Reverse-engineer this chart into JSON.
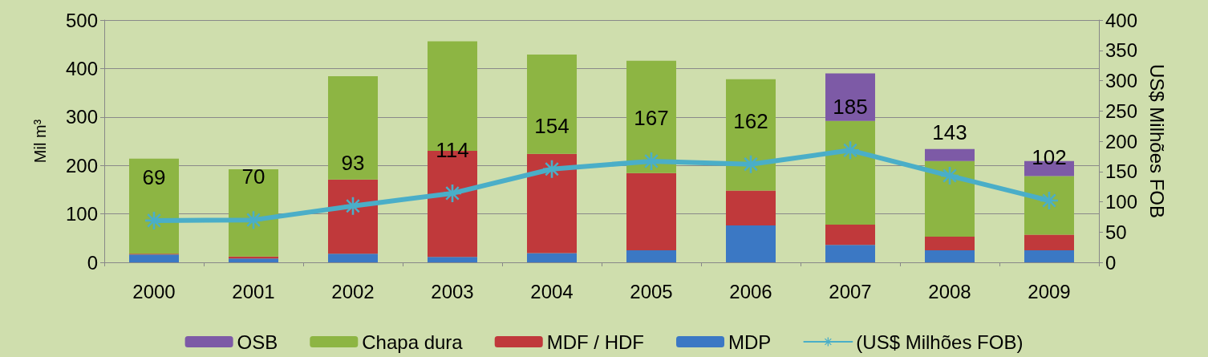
{
  "chart_data": {
    "type": "bar",
    "stacked": true,
    "ylabel": "Mil m³",
    "y2label": "US$ Milhões FOB",
    "categories": [
      "2000",
      "2001",
      "2002",
      "2003",
      "2004",
      "2005",
      "2006",
      "2007",
      "2008",
      "2009"
    ],
    "series": [
      {
        "name": "MDP",
        "color": "#3b78c4",
        "values": [
          16,
          8,
          18,
          11,
          19,
          25,
          76,
          36,
          25,
          25
        ]
      },
      {
        "name": "MDF / HDF",
        "color": "#c0393b",
        "values": [
          2,
          4,
          153,
          219,
          205,
          159,
          72,
          42,
          28,
          32
        ]
      },
      {
        "name": "Chapa dura",
        "color": "#8db543",
        "values": [
          196,
          180,
          213,
          226,
          205,
          232,
          230,
          214,
          156,
          121
        ]
      },
      {
        "name": "OSB",
        "color": "#7d5aa6",
        "values": [
          null,
          null,
          null,
          null,
          null,
          null,
          null,
          98,
          25,
          31
        ]
      },
      {
        "name": "(US$ Milhões FOB)",
        "type": "line",
        "axis": "y2",
        "color": "#4aaec8",
        "marker": "cross",
        "data_labels": true,
        "values": [
          69,
          70,
          93,
          114,
          154,
          167,
          162,
          185,
          143,
          102
        ]
      }
    ],
    "ylim": [
      0,
      500
    ],
    "yticks": [
      0,
      100,
      200,
      300,
      400,
      500
    ],
    "y2lim": [
      0,
      400
    ],
    "y2ticks": [
      0,
      50,
      100,
      150,
      200,
      250,
      300,
      350,
      400
    ],
    "grid": "y",
    "legend": "bottom"
  }
}
